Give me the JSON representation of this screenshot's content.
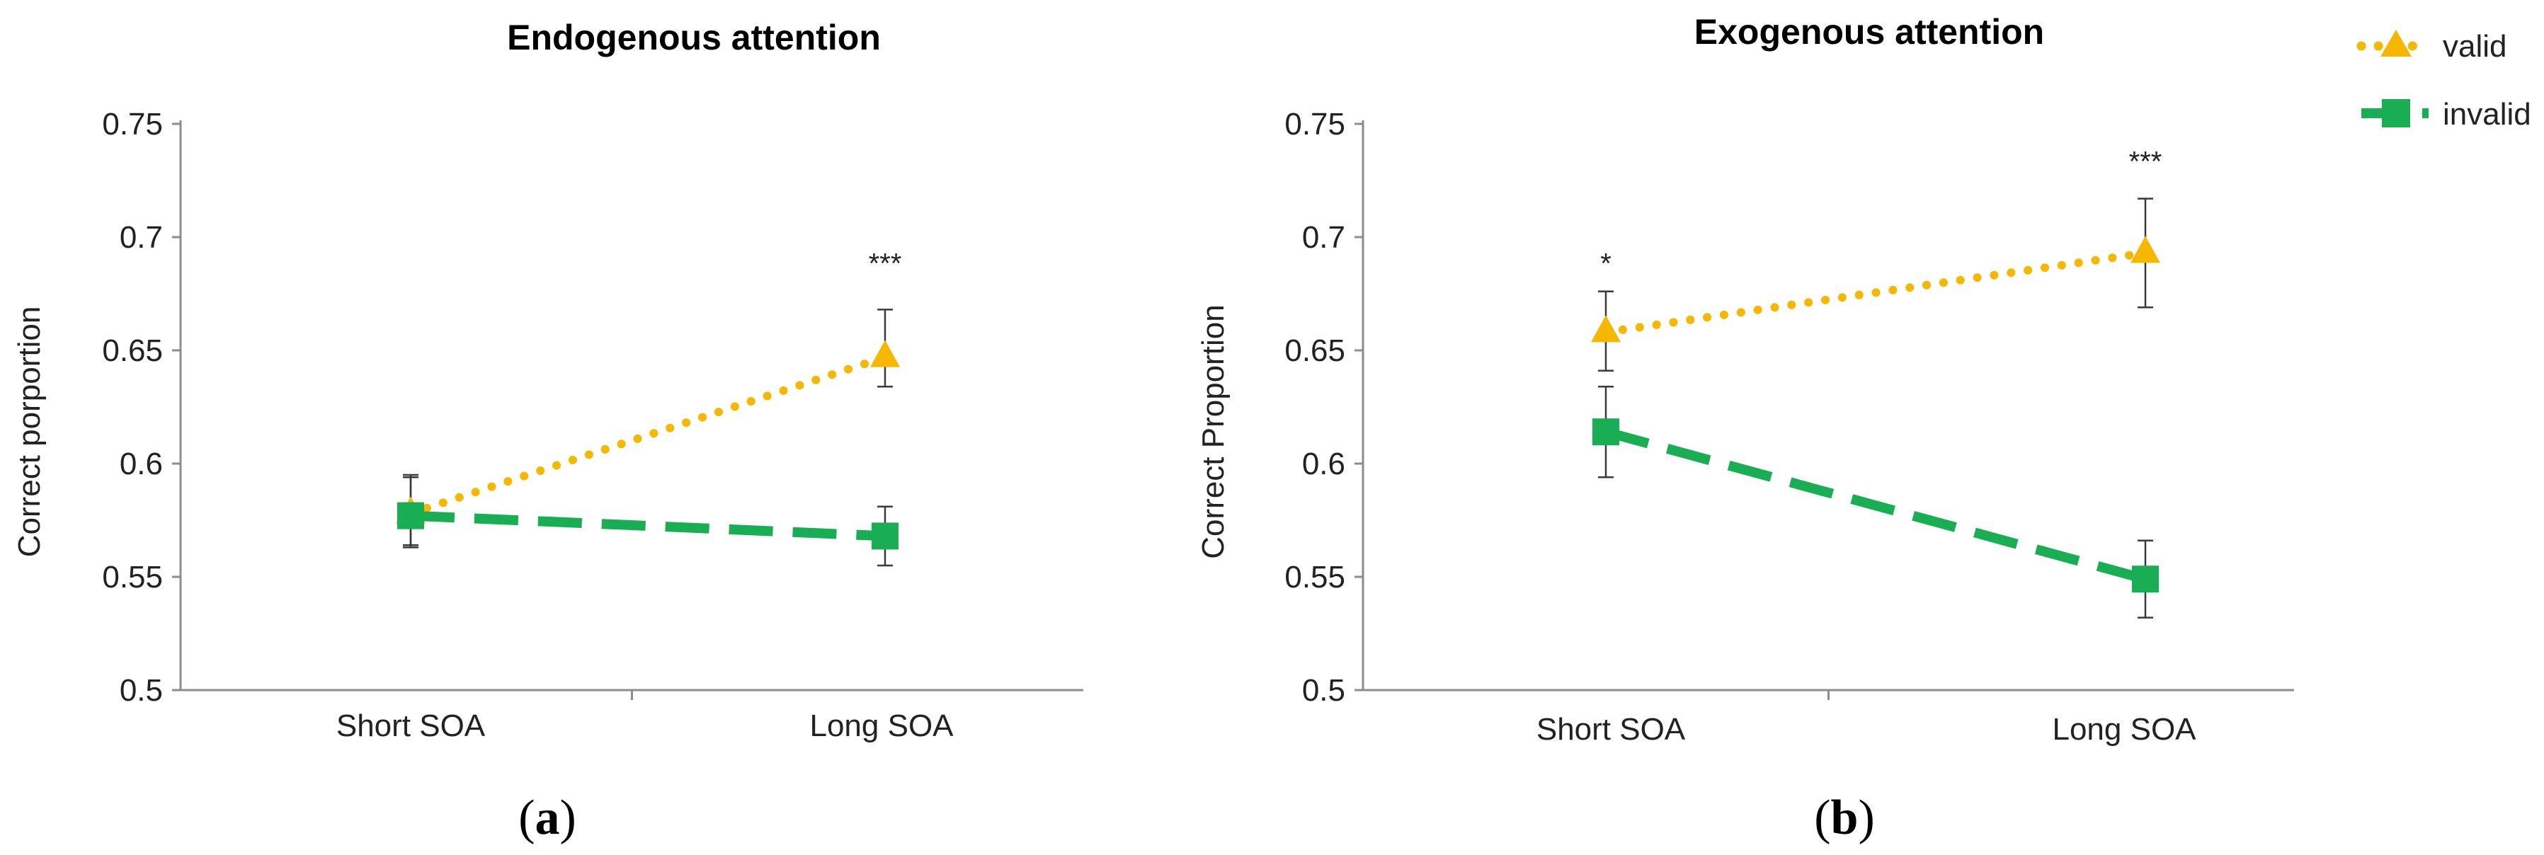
{
  "colors": {
    "valid": "#F5B700",
    "invalid": "#1AAE54",
    "axis": "#8C8C8C",
    "errorbar": "#3A3A3A"
  },
  "legend": {
    "valid_label": "valid",
    "invalid_label": "invalid",
    "valid_marker_icon": "triangle-marker-icon",
    "invalid_marker_icon": "square-marker-icon"
  },
  "chart_data": [
    {
      "type": "line",
      "panel_label": "a",
      "title": "Endogenous attention",
      "xlabel": "",
      "ylabel": "Correct porportion",
      "categories": [
        "Short SOA",
        "Long SOA"
      ],
      "ylim": [
        0.5,
        0.75
      ],
      "yticks": [
        0.5,
        0.55,
        0.6,
        0.65,
        0.7,
        0.75
      ],
      "ytick_labels": [
        "0.5",
        "0.55",
        "0.6",
        "0.65",
        "0.7",
        "0.75"
      ],
      "grid": false,
      "series": [
        {
          "name": "valid",
          "values": [
            0.578,
            0.647
          ],
          "err_upper": [
            0.595,
            0.668
          ],
          "err_lower": [
            0.563,
            0.634
          ]
        },
        {
          "name": "invalid",
          "values": [
            0.577,
            0.568
          ],
          "err_upper": [
            0.594,
            0.581
          ],
          "err_lower": [
            0.564,
            0.555
          ]
        }
      ],
      "annotations": [
        {
          "category": "Long SOA",
          "y": 0.688,
          "text": "***"
        }
      ]
    },
    {
      "type": "line",
      "panel_label": "b",
      "title": "Exogenous attention",
      "xlabel": "",
      "ylabel": "Correct Proportion",
      "categories": [
        "Short SOA",
        "Long SOA"
      ],
      "ylim": [
        0.5,
        0.75
      ],
      "yticks": [
        0.5,
        0.55,
        0.6,
        0.65,
        0.7,
        0.75
      ],
      "ytick_labels": [
        "0.5",
        "0.55",
        "0.6",
        "0.65",
        "0.7",
        "0.75"
      ],
      "grid": false,
      "series": [
        {
          "name": "valid",
          "values": [
            0.658,
            0.693
          ],
          "err_upper": [
            0.676,
            0.717
          ],
          "err_lower": [
            0.641,
            0.669
          ]
        },
        {
          "name": "invalid",
          "values": [
            0.614,
            0.549
          ],
          "err_upper": [
            0.634,
            0.566
          ],
          "err_lower": [
            0.594,
            0.532
          ]
        }
      ],
      "annotations": [
        {
          "category": "Short SOA",
          "y": 0.688,
          "text": "*"
        },
        {
          "category": "Long SOA",
          "y": 0.733,
          "text": "***"
        }
      ]
    }
  ]
}
